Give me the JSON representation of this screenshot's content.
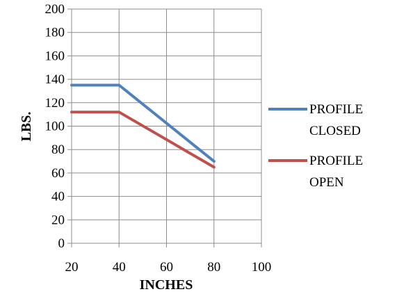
{
  "chart_data": {
    "type": "line",
    "title": "",
    "xlabel": "INCHES",
    "ylabel": "LBS.",
    "xlim": [
      20,
      100
    ],
    "ylim": [
      0,
      200
    ],
    "xticks": [
      20,
      40,
      60,
      80,
      100
    ],
    "yticks": [
      0,
      20,
      40,
      60,
      80,
      100,
      120,
      140,
      160,
      180,
      200
    ],
    "grid": true,
    "legend_position": "right",
    "series": [
      {
        "name_lines": [
          "PROFILE",
          "CLOSED"
        ],
        "color": "#4f81bd",
        "x": [
          20,
          40,
          80
        ],
        "y": [
          135,
          135,
          70
        ]
      },
      {
        "name_lines": [
          "PROFILE",
          "OPEN"
        ],
        "color": "#c0504d",
        "x": [
          20,
          40,
          80
        ],
        "y": [
          112,
          112,
          65
        ]
      }
    ]
  }
}
